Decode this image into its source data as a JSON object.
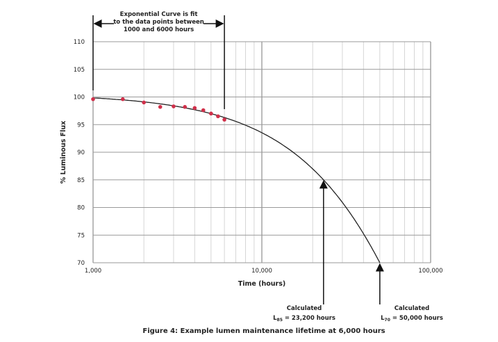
{
  "chart_data": {
    "type": "line",
    "title": "",
    "caption": "Figure 4: Example lumen maintenance lifetime at 6,000 hours",
    "xlabel": "Time (hours)",
    "ylabel": "% Luminous Flux",
    "xscale": "log",
    "xlim": [
      1000,
      100000
    ],
    "ylim": [
      70,
      110
    ],
    "grid": true,
    "x_tick_labels": [
      "1,000",
      "10,000",
      "100,000"
    ],
    "x_ticks": [
      1000,
      10000,
      100000
    ],
    "y_ticks": [
      70,
      75,
      80,
      85,
      90,
      95,
      100,
      105,
      110
    ],
    "y_tick_labels": [
      "70",
      "75",
      "80",
      "85",
      "90",
      "95",
      "100",
      "105",
      "110"
    ],
    "series": [
      {
        "kind": "scatter",
        "color": "#d0304a",
        "x": [
          1000,
          1500,
          2000,
          2500,
          3000,
          3500,
          4000,
          4500,
          5000,
          5500,
          6000
        ],
        "y": [
          99.6,
          99.6,
          99.0,
          98.2,
          98.3,
          98.2,
          98.0,
          97.6,
          97.0,
          96.5,
          95.9
        ]
      },
      {
        "kind": "exponential-fit",
        "color": "#222222",
        "x_range": [
          1000,
          50000
        ],
        "points": [
          [
            23200,
            85
          ],
          [
            50000,
            70
          ]
        ]
      }
    ],
    "annotations": {
      "fit_note": [
        "Exponential Curve is fit",
        "to the data points between",
        "1000 and 6000 hours"
      ],
      "l85": {
        "line1": "Calculated",
        "sub": "85",
        "value": "= 23,200 hours",
        "x": 23200,
        "y": 85
      },
      "l70": {
        "line1": "Calculated",
        "sub": "70",
        "value": "= 50,000 hours",
        "x": 50000,
        "y": 70
      },
      "l_prefix": "L"
    }
  }
}
